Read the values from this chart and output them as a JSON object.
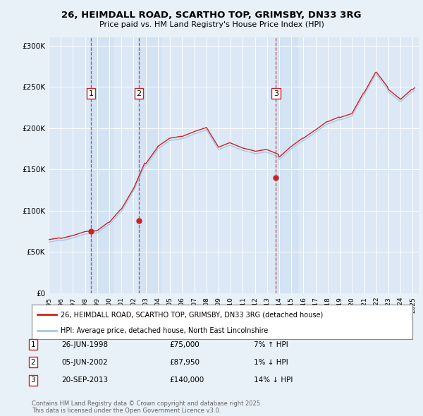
{
  "title_line1": "26, HEIMDALL ROAD, SCARTHO TOP, GRIMSBY, DN33 3RG",
  "title_line2": "Price paid vs. HM Land Registry's House Price Index (HPI)",
  "background_color": "#e8f0f8",
  "plot_bg_color": "#dce8f5",
  "ylabel_ticks": [
    "£0",
    "£50K",
    "£100K",
    "£150K",
    "£200K",
    "£250K",
    "£300K"
  ],
  "ytick_values": [
    0,
    50000,
    100000,
    150000,
    200000,
    250000,
    300000
  ],
  "ylim": [
    0,
    310000
  ],
  "xlim_start": 1995.0,
  "xlim_end": 2025.5,
  "sale_dates": [
    1998.49,
    2002.43,
    2013.73
  ],
  "sale_prices": [
    75000,
    87950,
    140000
  ],
  "sale_labels": [
    "1",
    "2",
    "3"
  ],
  "legend_label_red": "26, HEIMDALL ROAD, SCARTHO TOP, GRIMSBY, DN33 3RG (detached house)",
  "legend_label_blue": "HPI: Average price, detached house, North East Lincolnshire",
  "table_entries": [
    {
      "num": "1",
      "date": "26-JUN-1998",
      "price": "£75,000",
      "pct": "7% ↑ HPI"
    },
    {
      "num": "2",
      "date": "05-JUN-2002",
      "price": "£87,950",
      "pct": "1% ↓ HPI"
    },
    {
      "num": "3",
      "date": "20-SEP-2013",
      "price": "£140,000",
      "pct": "14% ↓ HPI"
    }
  ],
  "footer": "Contains HM Land Registry data © Crown copyright and database right 2025.\nThis data is licensed under the Open Government Licence v3.0."
}
